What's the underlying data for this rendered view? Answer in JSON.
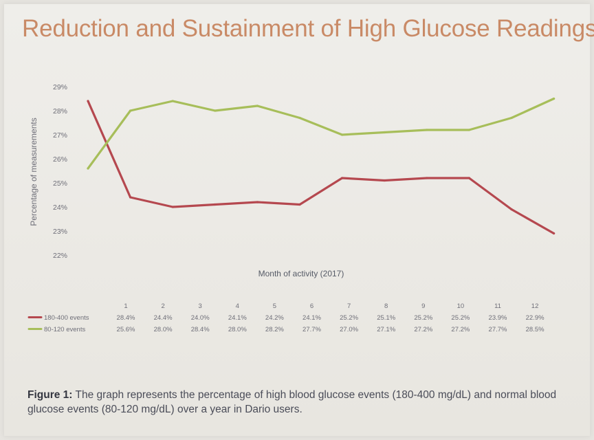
{
  "colors": {
    "title": "#c98a66",
    "series1": "#b5484f",
    "series2": "#a7be5a",
    "text": "#6e6e78"
  },
  "chart_data": {
    "type": "line",
    "title": "Reduction and Sustainment of High Glucose Readings",
    "xlabel": "Month of activity  (2017)",
    "ylabel": "Percentage of measurements",
    "categories": [
      "1",
      "2",
      "3",
      "4",
      "5",
      "6",
      "7",
      "8",
      "9",
      "10",
      "11",
      "12"
    ],
    "yticks": [
      "22%",
      "23%",
      "24%",
      "25%",
      "26%",
      "27%",
      "28%",
      "29%"
    ],
    "ylim": [
      22,
      29
    ],
    "grid": false,
    "series": [
      {
        "name": "180-400 events",
        "values": [
          28.4,
          24.4,
          24.0,
          24.1,
          24.2,
          24.1,
          25.2,
          25.1,
          25.2,
          25.2,
          23.9,
          22.9
        ],
        "labels": [
          "28.4%",
          "24.4%",
          "24.0%",
          "24.1%",
          "24.2%",
          "24.1%",
          "25.2%",
          "25.1%",
          "25.2%",
          "25.2%",
          "23.9%",
          "22.9%"
        ]
      },
      {
        "name": "80-120 events",
        "values": [
          25.6,
          28.0,
          28.4,
          28.0,
          28.2,
          27.7,
          27.0,
          27.1,
          27.2,
          27.2,
          27.7,
          28.5
        ],
        "labels": [
          "25.6%",
          "28.0%",
          "28.4%",
          "28.0%",
          "28.2%",
          "27.7%",
          "27.0%",
          "27.1%",
          "27.2%",
          "27.2%",
          "27.7%",
          "28.5%"
        ]
      }
    ]
  },
  "caption": {
    "label": "Figure 1:",
    "text": " The graph represents the percentage of high blood glucose events (180-400 mg/dL) and normal blood glucose events (80-120 mg/dL) over a year in Dario users."
  }
}
